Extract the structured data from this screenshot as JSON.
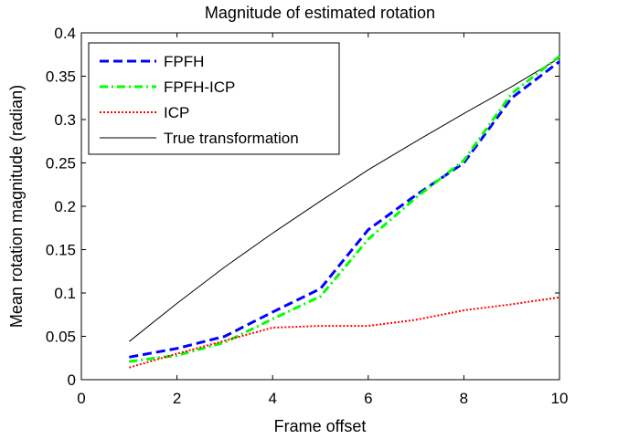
{
  "chart_data": {
    "type": "line",
    "title": "Magnitude of estimated rotation",
    "xlabel": "Frame offset",
    "ylabel": "Mean rotation magnitude (radian)",
    "xlim": [
      0,
      10
    ],
    "ylim": [
      0,
      0.4
    ],
    "xticks": [
      0,
      2,
      4,
      6,
      8,
      10
    ],
    "yticks": [
      0,
      0.05,
      0.1,
      0.15,
      0.2,
      0.25,
      0.3,
      0.35,
      0.4
    ],
    "xtick_labels": [
      "0",
      "2",
      "4",
      "6",
      "8",
      "10"
    ],
    "ytick_labels": [
      "0",
      "0.05",
      "0.1",
      "0.15",
      "0.2",
      "0.25",
      "0.3",
      "0.35",
      "0.4"
    ],
    "grid": false,
    "legend_position": "top-left",
    "x": [
      1,
      2,
      3,
      4,
      5,
      6,
      7,
      8,
      9,
      10
    ],
    "series": [
      {
        "name": "FPFH",
        "color": "#0000ff",
        "style": "dashed",
        "values": [
          0.026,
          0.036,
          0.05,
          0.078,
          0.105,
          0.173,
          0.213,
          0.25,
          0.325,
          0.367
        ]
      },
      {
        "name": "FPFH-ICP",
        "color": "#00ff00",
        "style": "dashdot",
        "values": [
          0.021,
          0.028,
          0.043,
          0.07,
          0.096,
          0.162,
          0.21,
          0.253,
          0.33,
          0.373
        ]
      },
      {
        "name": "ICP",
        "color": "#ff0000",
        "style": "dotted",
        "values": [
          0.014,
          0.03,
          0.045,
          0.06,
          0.062,
          0.062,
          0.069,
          0.08,
          0.087,
          0.095
        ]
      },
      {
        "name": "True transformation",
        "color": "#000000",
        "style": "solid",
        "values": [
          0.044,
          0.088,
          0.13,
          0.169,
          0.206,
          0.242,
          0.275,
          0.307,
          0.338,
          0.371
        ]
      }
    ]
  }
}
